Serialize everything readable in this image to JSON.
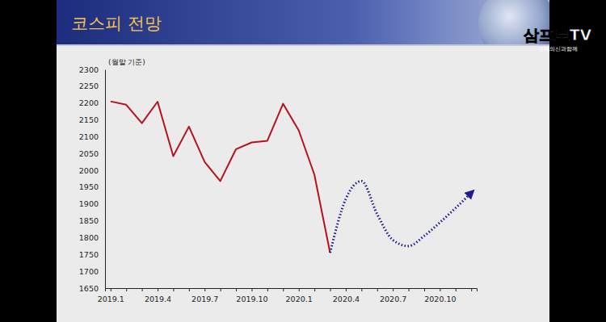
{
  "chart_data": {
    "type": "line",
    "title": "코스피 전망",
    "annotations": [
      "(월말 기준)"
    ],
    "categories": [
      "2019.1",
      null,
      null,
      "2019.4",
      null,
      null,
      "2019.7",
      null,
      null,
      "2019.10",
      null,
      null,
      "2020.1",
      null,
      null,
      "2020.4",
      null,
      null,
      "2020.7",
      null,
      null,
      "2020.10",
      null,
      null
    ],
    "series": [
      {
        "color": "#b5121b",
        "line_style": "solid",
        "values": [
          2205,
          2195,
          2140,
          2204,
          2042,
          2130,
          2025,
          1968,
          2063,
          2083,
          2088,
          2198,
          2119,
          1987,
          1755,
          null,
          null,
          null,
          null,
          null,
          null,
          null,
          null,
          null
        ]
      },
      {
        "color": "#1c1c8f",
        "line_style": "dotted",
        "values": [
          null,
          null,
          null,
          null,
          null,
          null,
          null,
          null,
          null,
          null,
          null,
          null,
          null,
          null,
          1755,
          1915,
          1968,
          1870,
          1793,
          1775,
          1805,
          1845,
          1888,
          1933
        ]
      }
    ],
    "ylim": [
      1650,
      2300
    ],
    "yticks": [
      1650,
      1700,
      1750,
      1800,
      1850,
      1900,
      1950,
      2000,
      2050,
      2100,
      2150,
      2200,
      2250,
      2300
    ],
    "grid": false
  },
  "watermark": {
    "text": "삼프로TV",
    "subtitle": "경제의신과함께"
  }
}
